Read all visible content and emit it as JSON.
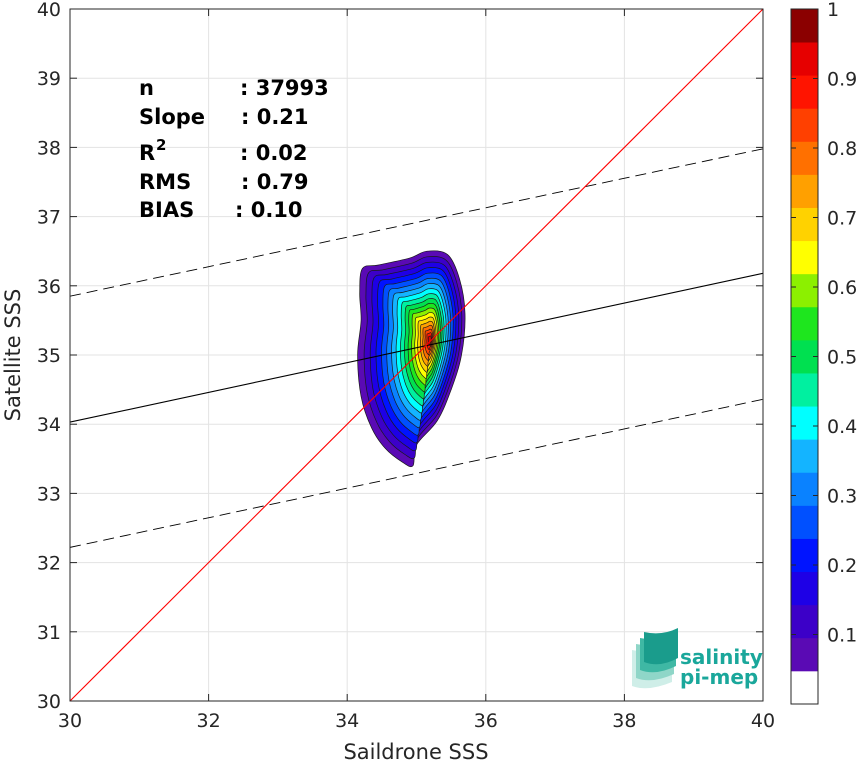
{
  "chart_data": {
    "type": "contour",
    "xlabel": "Saildrone SSS",
    "ylabel": "Satellite SSS",
    "xlim": [
      30,
      40
    ],
    "ylim": [
      30,
      40
    ],
    "xticks": [
      "30",
      "32",
      "34",
      "36",
      "38",
      "40"
    ],
    "yticks": [
      "30",
      "31",
      "32",
      "33",
      "34",
      "35",
      "36",
      "37",
      "38",
      "39",
      "40"
    ],
    "grid": true,
    "stats": [
      {
        "label": "n",
        "value": ": 37993"
      },
      {
        "label": "Slope",
        "value": ": 0.21"
      },
      {
        "label": "R",
        "sup": "2",
        "value": ": 0.02"
      },
      {
        "label": "RMS",
        "value": ": 0.79"
      },
      {
        "label": "BIAS",
        "value": ": 0.10"
      }
    ],
    "lines": {
      "identity": {
        "x": [
          30,
          40
        ],
        "y": [
          30,
          40
        ],
        "color": "#ff0000"
      },
      "regression": {
        "x": [
          30,
          40
        ],
        "y": [
          34.03,
          36.18
        ],
        "color": "#000000"
      },
      "upper_bound": {
        "x": [
          30,
          40
        ],
        "y": [
          35.85,
          37.98
        ],
        "color": "#000000",
        "style": "dashed"
      },
      "lower_bound": {
        "x": [
          30,
          40
        ],
        "y": [
          32.22,
          34.36
        ],
        "color": "#000000",
        "style": "dashed"
      }
    },
    "density_peak": {
      "x": 35.15,
      "y": 35.2
    },
    "contour_levels": [
      0.05,
      0.1,
      0.15,
      0.2,
      0.25,
      0.3,
      0.35,
      0.4,
      0.45,
      0.5,
      0.55,
      0.6,
      0.65,
      0.7,
      0.75,
      0.8,
      0.85,
      0.9,
      0.95
    ],
    "colorbar": {
      "range": [
        0,
        1
      ],
      "ticks": [
        "0.1",
        "0.2",
        "0.3",
        "0.4",
        "0.5",
        "0.6",
        "0.7",
        "0.8",
        "0.9",
        "1"
      ],
      "colors": [
        "#ffffff",
        "#5a0ab4",
        "#3c00c8",
        "#1e00e6",
        "#0014ff",
        "#0050ff",
        "#0a82ff",
        "#14b4ff",
        "#00ffff",
        "#00f0a0",
        "#00e050",
        "#1ee61e",
        "#8cf000",
        "#ffff00",
        "#ffd200",
        "#ffa000",
        "#ff7000",
        "#ff4000",
        "#ff1400",
        "#e60000",
        "#8b0000"
      ]
    }
  },
  "logo": {
    "line1": "salinity",
    "line2": "pi-mep"
  }
}
